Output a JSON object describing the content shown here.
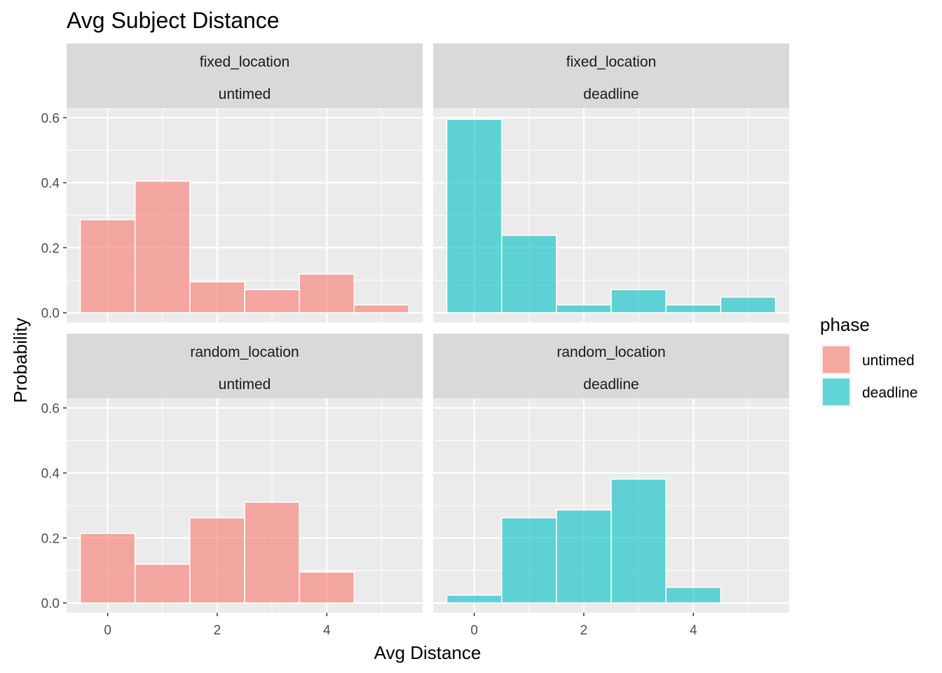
{
  "chart_data": {
    "type": "bar",
    "title": "Avg Subject Distance",
    "xlabel": "Avg Distance",
    "ylabel": "Probability",
    "xlim": [
      -0.75,
      5.75
    ],
    "ylim": [
      -0.03,
      0.63
    ],
    "x_ticks": [
      0,
      2,
      4
    ],
    "x_tick_labels": [
      "0",
      "2",
      "4"
    ],
    "y_ticks": [
      0,
      0.2,
      0.4,
      0.6
    ],
    "y_tick_labels": [
      "0.0",
      "0.2",
      "0.4",
      "0.6"
    ],
    "bin_width": 1,
    "bins": [
      0,
      1,
      2,
      3,
      4,
      5
    ],
    "grid": true,
    "legend": {
      "title": "phase",
      "position": "right",
      "entries": [
        {
          "label": "untimed",
          "color": "#F8766D"
        },
        {
          "label": "deadline",
          "color": "#00BFC4"
        }
      ]
    },
    "panels": [
      {
        "strip_top": "fixed_location",
        "strip_bottom": "untimed",
        "phase": "untimed",
        "values": [
          0.286,
          0.405,
          0.095,
          0.071,
          0.119,
          0.024
        ]
      },
      {
        "strip_top": "fixed_location",
        "strip_bottom": "deadline",
        "phase": "deadline",
        "values": [
          0.595,
          0.238,
          0.024,
          0.071,
          0.024,
          0.048
        ]
      },
      {
        "strip_top": "random_location",
        "strip_bottom": "untimed",
        "phase": "untimed",
        "values": [
          0.214,
          0.119,
          0.262,
          0.31,
          0.095,
          0
        ]
      },
      {
        "strip_top": "random_location",
        "strip_bottom": "deadline",
        "phase": "deadline",
        "values": [
          0.024,
          0.262,
          0.286,
          0.381,
          0.048,
          0
        ]
      }
    ]
  }
}
